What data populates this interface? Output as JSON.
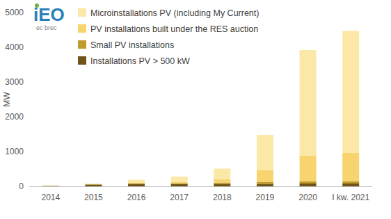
{
  "chart_data": {
    "type": "bar",
    "stacked": true,
    "annotations": [
      "iEO",
      "ec brec"
    ],
    "y_label": "MW",
    "categories": [
      "2014",
      "2015",
      "2016",
      "2017",
      "2018",
      "2019",
      "2020",
      "I kw. 2021"
    ],
    "series": [
      {
        "name": "Installations PV > 500 kW",
        "color": "#6e5418",
        "values": [
          10,
          50,
          60,
          60,
          70,
          70,
          80,
          80
        ]
      },
      {
        "name": "Small PV installations",
        "color": "#bf9a2c",
        "values": [
          5,
          15,
          30,
          30,
          40,
          50,
          60,
          60
        ]
      },
      {
        "name": "PV installations built under the RES auction",
        "color": "#f8d46e",
        "values": [
          0,
          0,
          10,
          30,
          100,
          350,
          750,
          830
        ]
      },
      {
        "name": "Microinstallations PV (including My Current)",
        "color": "#fce8a6",
        "values": [
          10,
          5,
          90,
          160,
          300,
          1010,
          3030,
          3500
        ]
      }
    ],
    "ylim": [
      0,
      5000
    ],
    "yticks": [
      0,
      1000,
      2000,
      3000,
      4000,
      5000
    ],
    "grid": false,
    "legend": "upper left"
  }
}
